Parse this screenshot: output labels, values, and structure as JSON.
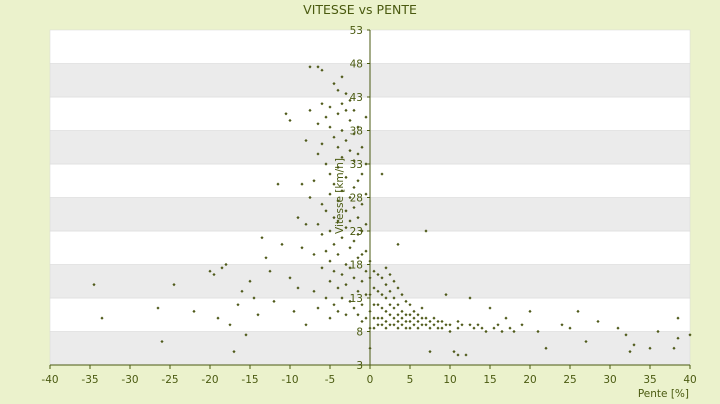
{
  "chart_data": {
    "type": "scatter",
    "title": "VITESSE vs PENTE",
    "xlabel": "Pente [%]",
    "ylabel": "Vitesse [km/h]",
    "xlim": [
      -40,
      40
    ],
    "ylim": [
      3,
      53
    ],
    "x_ticks": [
      "-40",
      "-35",
      "-30",
      "-25",
      "-20",
      "-15",
      "-10",
      "-5",
      "0",
      "5",
      "10",
      "15",
      "20",
      "25",
      "30",
      "35",
      "40"
    ],
    "y_ticks": [
      "3",
      "8",
      "13",
      "18",
      "23",
      "28",
      "33",
      "38",
      "43",
      "48",
      "53"
    ],
    "grid": true,
    "legend": "none",
    "colors": {
      "page_background": "#ebf2cc",
      "plot_band_light": "#ffffff",
      "plot_band_dark": "#ebebeb",
      "marker": "#4f5a1a",
      "axis": "#4a5a10",
      "text": "#4a5a10"
    },
    "series": [
      {
        "points": [
          [
            -34.5,
            15.0
          ],
          [
            -33.5,
            10.0
          ],
          [
            -26.5,
            11.5
          ],
          [
            -26,
            6.5
          ],
          [
            -24.5,
            15.0
          ],
          [
            -22,
            11.0
          ],
          [
            -20,
            17.0
          ],
          [
            -19.5,
            16.5
          ],
          [
            -19,
            10.0
          ],
          [
            -18.5,
            17.5
          ],
          [
            -18,
            18.0
          ],
          [
            -17.5,
            9.0
          ],
          [
            -17,
            5.0
          ],
          [
            -16.5,
            12.0
          ],
          [
            -16,
            14.0
          ],
          [
            -15.5,
            7.5
          ],
          [
            -15,
            15.5
          ],
          [
            -14.5,
            13.0
          ],
          [
            -14,
            10.5
          ],
          [
            -13.5,
            22.0
          ],
          [
            -13,
            19.0
          ],
          [
            -12.5,
            17.0
          ],
          [
            -12,
            12.5
          ],
          [
            -11.5,
            30.0
          ],
          [
            -11,
            21.0
          ],
          [
            -10.5,
            40.5
          ],
          [
            -10,
            39.5
          ],
          [
            -10,
            16.0
          ],
          [
            -9.5,
            11.0
          ],
          [
            -9,
            25.0
          ],
          [
            -9,
            14.5
          ],
          [
            -8.5,
            20.5
          ],
          [
            -8.5,
            30.0
          ],
          [
            -8,
            36.5
          ],
          [
            -8,
            24.0
          ],
          [
            -8,
            9.0
          ],
          [
            -7.5,
            47.5
          ],
          [
            -7.5,
            41.0
          ],
          [
            -7.5,
            28.0
          ],
          [
            -7,
            19.5
          ],
          [
            -7,
            14.0
          ],
          [
            -7,
            30.5
          ],
          [
            -6.5,
            47.5
          ],
          [
            -6.5,
            39.0
          ],
          [
            -6.5,
            34.5
          ],
          [
            -6.5,
            24.0
          ],
          [
            -6.5,
            11.5
          ],
          [
            -6,
            47.0
          ],
          [
            -6,
            42.0
          ],
          [
            -6,
            36.0
          ],
          [
            -6,
            27.0
          ],
          [
            -6,
            22.5
          ],
          [
            -6,
            17.5
          ],
          [
            -5.5,
            40.0
          ],
          [
            -5.5,
            33.0
          ],
          [
            -5.5,
            26.0
          ],
          [
            -5.5,
            20.0
          ],
          [
            -5.5,
            13.0
          ],
          [
            -5,
            41.5
          ],
          [
            -5,
            38.5
          ],
          [
            -5,
            31.5
          ],
          [
            -5,
            28.5
          ],
          [
            -5,
            23.0
          ],
          [
            -5,
            18.5
          ],
          [
            -5,
            15.5
          ],
          [
            -5,
            10.0
          ],
          [
            -4.5,
            45.0
          ],
          [
            -4.5,
            37.0
          ],
          [
            -4.5,
            30.0
          ],
          [
            -4.5,
            25.0
          ],
          [
            -4.5,
            21.0
          ],
          [
            -4.5,
            17.0
          ],
          [
            -4.5,
            12.0
          ],
          [
            -4,
            44.0
          ],
          [
            -4,
            40.5
          ],
          [
            -4,
            35.5
          ],
          [
            -4,
            32.5
          ],
          [
            -4,
            27.5
          ],
          [
            -4,
            24.5
          ],
          [
            -4,
            19.5
          ],
          [
            -4,
            14.5
          ],
          [
            -4,
            11.0
          ],
          [
            -3.5,
            46.0
          ],
          [
            -3.5,
            42.0
          ],
          [
            -3.5,
            38.0
          ],
          [
            -3.5,
            34.0
          ],
          [
            -3.5,
            29.0
          ],
          [
            -3.5,
            22.0
          ],
          [
            -3.5,
            16.5
          ],
          [
            -3.5,
            13.0
          ],
          [
            -3,
            43.5
          ],
          [
            -3,
            41.0
          ],
          [
            -3,
            36.5
          ],
          [
            -3,
            31.0
          ],
          [
            -3,
            26.0
          ],
          [
            -3,
            23.5
          ],
          [
            -3,
            18.0
          ],
          [
            -3,
            15.0
          ],
          [
            -3,
            10.5
          ],
          [
            -2.5,
            42.5
          ],
          [
            -2.5,
            39.5
          ],
          [
            -2.5,
            35.0
          ],
          [
            -2.5,
            28.0
          ],
          [
            -2.5,
            24.5
          ],
          [
            -2.5,
            20.5
          ],
          [
            -2.5,
            17.5
          ],
          [
            -2.5,
            12.5
          ],
          [
            -2,
            41.0
          ],
          [
            -2,
            37.5
          ],
          [
            -2,
            33.5
          ],
          [
            -2,
            29.5
          ],
          [
            -2,
            26.5
          ],
          [
            -2,
            21.5
          ],
          [
            -2,
            16.0
          ],
          [
            -2,
            11.5
          ],
          [
            -1.5,
            38.5
          ],
          [
            -1.5,
            34.5
          ],
          [
            -1.5,
            30.5
          ],
          [
            -1.5,
            25.0
          ],
          [
            -1.5,
            22.5
          ],
          [
            -1.5,
            19.0
          ],
          [
            -1.5,
            14.0
          ],
          [
            -1.5,
            10.5
          ],
          [
            -1,
            35.5
          ],
          [
            -1,
            31.5
          ],
          [
            -1,
            27.0
          ],
          [
            -1,
            23.0
          ],
          [
            -1,
            19.5
          ],
          [
            -1,
            15.5
          ],
          [
            -1,
            12.0
          ],
          [
            -1,
            9.5
          ],
          [
            -0.5,
            40.0
          ],
          [
            -0.5,
            33.0
          ],
          [
            -0.5,
            28.5
          ],
          [
            -0.5,
            24.0
          ],
          [
            -0.5,
            20.0
          ],
          [
            -0.5,
            17.0
          ],
          [
            -0.5,
            13.5
          ],
          [
            -0.5,
            10.0
          ],
          [
            0,
            18.5
          ],
          [
            0,
            16.0
          ],
          [
            0,
            13.5
          ],
          [
            0,
            11.0
          ],
          [
            0,
            8.5
          ],
          [
            0,
            5.5
          ],
          [
            0.5,
            17.0
          ],
          [
            0.5,
            14.5
          ],
          [
            0.5,
            12.0
          ],
          [
            0.5,
            10.0
          ],
          [
            0.5,
            8.5
          ],
          [
            1,
            16.5
          ],
          [
            1,
            14.0
          ],
          [
            1,
            12.0
          ],
          [
            1,
            10.0
          ],
          [
            1,
            9.0
          ],
          [
            1.5,
            31.5
          ],
          [
            1.5,
            16.0
          ],
          [
            1.5,
            13.5
          ],
          [
            1.5,
            11.5
          ],
          [
            1.5,
            10.0
          ],
          [
            1.5,
            9.0
          ],
          [
            2,
            17.5
          ],
          [
            2,
            15.0
          ],
          [
            2,
            13.0
          ],
          [
            2,
            11.0
          ],
          [
            2,
            9.5
          ],
          [
            2,
            8.5
          ],
          [
            2.5,
            16.5
          ],
          [
            2.5,
            14.0
          ],
          [
            2.5,
            12.0
          ],
          [
            2.5,
            10.5
          ],
          [
            2.5,
            9.0
          ],
          [
            3,
            15.5
          ],
          [
            3,
            13.0
          ],
          [
            3,
            11.5
          ],
          [
            3,
            10.0
          ],
          [
            3,
            9.0
          ],
          [
            3.5,
            21.0
          ],
          [
            3.5,
            14.5
          ],
          [
            3.5,
            12.0
          ],
          [
            3.5,
            10.5
          ],
          [
            3.5,
            9.5
          ],
          [
            3.5,
            8.5
          ],
          [
            4,
            13.5
          ],
          [
            4,
            11.0
          ],
          [
            4,
            10.0
          ],
          [
            4,
            9.0
          ],
          [
            4.5,
            12.5
          ],
          [
            4.5,
            10.5
          ],
          [
            4.5,
            9.5
          ],
          [
            4.5,
            8.5
          ],
          [
            5,
            12.0
          ],
          [
            5,
            10.5
          ],
          [
            5,
            9.5
          ],
          [
            5,
            8.5
          ],
          [
            5.5,
            11.0
          ],
          [
            5.5,
            10.0
          ],
          [
            5.5,
            9.0
          ],
          [
            6,
            10.5
          ],
          [
            6,
            9.5
          ],
          [
            6,
            8.5
          ],
          [
            6.5,
            11.5
          ],
          [
            6.5,
            10.0
          ],
          [
            6.5,
            9.0
          ],
          [
            7,
            23.0
          ],
          [
            7,
            10.0
          ],
          [
            7,
            9.0
          ],
          [
            7.5,
            5.0
          ],
          [
            7.5,
            9.5
          ],
          [
            7.5,
            8.5
          ],
          [
            8,
            10.0
          ],
          [
            8,
            9.0
          ],
          [
            8.5,
            9.5
          ],
          [
            8.5,
            8.5
          ],
          [
            9,
            9.5
          ],
          [
            9,
            8.5
          ],
          [
            9.5,
            13.5
          ],
          [
            9.5,
            9.0
          ],
          [
            10,
            9.0
          ],
          [
            10,
            8.0
          ],
          [
            10.5,
            5.0
          ],
          [
            11,
            9.5
          ],
          [
            11,
            8.5
          ],
          [
            11,
            4.5
          ],
          [
            11.5,
            9.0
          ],
          [
            12,
            4.5
          ],
          [
            12.5,
            9.0
          ],
          [
            12.5,
            13.0
          ],
          [
            13,
            8.5
          ],
          [
            13.5,
            9.0
          ],
          [
            14,
            8.5
          ],
          [
            14.5,
            8.0
          ],
          [
            15,
            11.5
          ],
          [
            15.5,
            8.5
          ],
          [
            16,
            9.0
          ],
          [
            16.5,
            8.0
          ],
          [
            17,
            10.0
          ],
          [
            17.5,
            8.5
          ],
          [
            18,
            8.0
          ],
          [
            19,
            9.0
          ],
          [
            20,
            11.0
          ],
          [
            21,
            8.0
          ],
          [
            22,
            5.5
          ],
          [
            24,
            9.0
          ],
          [
            25,
            8.5
          ],
          [
            26,
            11.0
          ],
          [
            27,
            6.5
          ],
          [
            28.5,
            9.5
          ],
          [
            31,
            8.5
          ],
          [
            32,
            7.5
          ],
          [
            32.5,
            5.0
          ],
          [
            33,
            6.0
          ],
          [
            35,
            5.5
          ],
          [
            36,
            8.0
          ],
          [
            38,
            5.5
          ],
          [
            38.5,
            10.0
          ],
          [
            38.5,
            7.0
          ],
          [
            40,
            7.5
          ]
        ]
      }
    ]
  }
}
